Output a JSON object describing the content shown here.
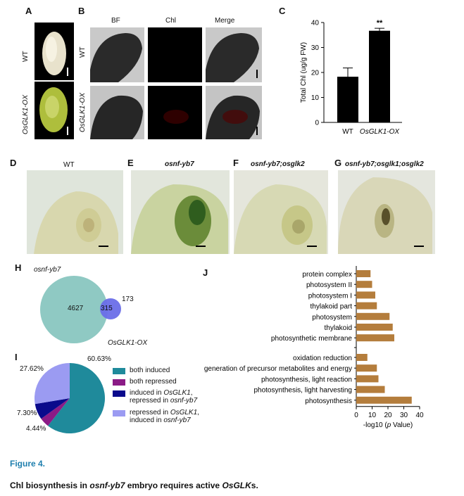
{
  "panels": {
    "A": "A",
    "B": "B",
    "C": "C",
    "D": "D",
    "E": "E",
    "F": "F",
    "G": "G",
    "H": "H",
    "I": "I",
    "J": "J"
  },
  "panelA": {
    "row1": "WT",
    "row2": "OsGLK1-OX"
  },
  "panelB": {
    "col1": "BF",
    "col2": "Chl",
    "col3": "Merge",
    "row1": "WT",
    "row2": "OsGLK1-OX"
  },
  "panelD": {
    "title": "WT"
  },
  "panelE": {
    "title": "osnf-yb7"
  },
  "panelF": {
    "title": "osnf-yb7;osglk2"
  },
  "panelG": {
    "title": "osnf-yb7;osglk1;osglk2"
  },
  "venn": {
    "set1": "osnf-yb7",
    "set2": "OsGLK1-OX",
    "only1": "4627",
    "both": "315",
    "only2": "173",
    "color1": "#8fc9c3",
    "color2": "#6a6ee8"
  },
  "pie": {
    "labels": [
      "60.63%",
      "4.44%",
      "7.30%",
      "27.62%"
    ],
    "legend": [
      {
        "text1": "both induced",
        "text2": ""
      },
      {
        "text1": "both repressed",
        "text2": ""
      },
      {
        "text1": "induced in ",
        "em1": "OsGLK1",
        "text1b": ",",
        "text2": "repressed in ",
        "em2": "osnf-yb7"
      },
      {
        "text1": "repressed in ",
        "em1": "OsGLK1",
        "text1b": ",",
        "text2": "induced in ",
        "em2": "osnf-yb7"
      }
    ],
    "colors": [
      "#1f8a9b",
      "#8b1b86",
      "#0a0a8c",
      "#9b9bf2"
    ]
  },
  "chart_data": [
    {
      "type": "bar",
      "categories": [
        "WT",
        "OsGLK1-OX"
      ],
      "values": [
        18.3,
        36.7
      ],
      "errors": [
        3.5,
        1.0
      ],
      "ylabel": "Total Chl (ug/g FW)",
      "ylim": [
        0,
        40
      ],
      "yticks": [
        "0",
        "10",
        "20",
        "30",
        "40"
      ],
      "annotation": "**",
      "color": "#000000"
    },
    {
      "type": "bar",
      "orientation": "horizontal",
      "categories": [
        "protein complex",
        "photosystem II",
        "photosystem I",
        "thylakoid part",
        "photosystem",
        "thylakoid",
        "photosynthetic membrane",
        "oxidation reduction",
        "generation of precursor metabolites and energy",
        "photosynthesis, light reaction",
        "photosynthesis, light harvesting",
        "photosynthesis"
      ],
      "values": [
        9,
        10,
        12,
        13,
        21,
        23,
        24,
        7,
        13,
        14,
        18,
        35
      ],
      "xlabel_pre": "-log10 (",
      "xlabel_em": "p",
      "xlabel_post": " Value)",
      "xlim": [
        0,
        40
      ],
      "xticks": [
        "0",
        "10",
        "20",
        "30",
        "40"
      ],
      "color": "#b47d3c"
    }
  ],
  "caption": {
    "figure": "Figure 4.",
    "title_pre": "Chl biosynthesis in ",
    "title_em1": "osnf-yb7",
    "title_mid": " embryo requires active ",
    "title_em2": "OsGLK",
    "title_post": "s."
  }
}
